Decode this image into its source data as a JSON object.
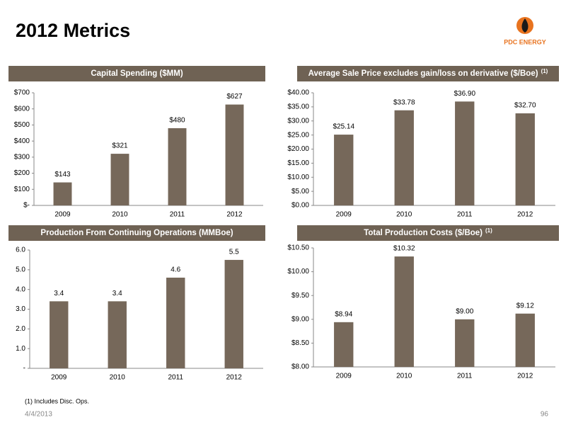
{
  "header": {
    "title": "2012 Metrics",
    "logo": "PDC ENERGY"
  },
  "chart_data": [
    {
      "type": "bar",
      "title": "Capital Spending ($MM)",
      "categories": [
        "2009",
        "2010",
        "2011",
        "2012"
      ],
      "values": [
        143,
        321,
        480,
        627
      ],
      "value_labels": [
        "$143",
        "$321",
        "$480",
        "$627"
      ],
      "color": "#76685a",
      "ylim": [
        0,
        700
      ],
      "yticks": [
        {
          "value": 0,
          "label": "$-"
        },
        {
          "value": 100,
          "label": "$100"
        },
        {
          "value": 200,
          "label": "$200"
        },
        {
          "value": 300,
          "label": "$300"
        },
        {
          "value": 400,
          "label": "$400"
        },
        {
          "value": 500,
          "label": "$500"
        },
        {
          "value": 600,
          "label": "$600"
        },
        {
          "value": 700,
          "label": "$700"
        }
      ]
    },
    {
      "type": "bar",
      "title": "Average Sale Price excludes gain/loss on derivative ($/Boe)",
      "title_note": "(1)",
      "categories": [
        "2009",
        "2010",
        "2011",
        "2012"
      ],
      "values": [
        25.14,
        33.78,
        36.9,
        32.7
      ],
      "value_labels": [
        "$25.14",
        "$33.78",
        "$36.90",
        "$32.70"
      ],
      "color": "#76685a",
      "ylim": [
        0,
        40
      ],
      "yticks": [
        {
          "value": 0,
          "label": "$0.00"
        },
        {
          "value": 5,
          "label": "$5.00"
        },
        {
          "value": 10,
          "label": "$10.00"
        },
        {
          "value": 15,
          "label": "$15.00"
        },
        {
          "value": 20,
          "label": "$20.00"
        },
        {
          "value": 25,
          "label": "$25.00"
        },
        {
          "value": 30,
          "label": "$30.00"
        },
        {
          "value": 35,
          "label": "$35.00"
        },
        {
          "value": 40,
          "label": "$40.00"
        }
      ]
    },
    {
      "type": "bar",
      "title": "Production From Continuing Operations (MMBoe)",
      "categories": [
        "2009",
        "2010",
        "2011",
        "2012"
      ],
      "values": [
        3.4,
        3.4,
        4.6,
        5.5
      ],
      "color": "#76685a",
      "ylim": [
        0,
        6
      ],
      "yticks": [
        {
          "value": 0,
          "label": "-"
        },
        {
          "value": 1,
          "label": "1.0"
        },
        {
          "value": 2,
          "label": "2.0"
        },
        {
          "value": 3,
          "label": "3.0"
        },
        {
          "value": 4,
          "label": "4.0"
        },
        {
          "value": 5,
          "label": "5.0"
        },
        {
          "value": 6,
          "label": "6.0"
        }
      ]
    },
    {
      "type": "bar",
      "title": "Total Production Costs ($/Boe)",
      "title_note": "(1)",
      "categories": [
        "2009",
        "2010",
        "2011",
        "2012"
      ],
      "values": [
        8.94,
        10.32,
        9.0,
        9.12
      ],
      "value_labels": [
        "$8.94",
        "$10.32",
        "$9.00",
        "$9.12"
      ],
      "color": "#76685a",
      "ylim": [
        8,
        10.5
      ],
      "yticks": [
        {
          "value": 8,
          "label": "$8.00"
        },
        {
          "value": 8.5,
          "label": "$8.50"
        },
        {
          "value": 9,
          "label": "$9.00"
        },
        {
          "value": 9.5,
          "label": "$9.50"
        },
        {
          "value": 10,
          "label": "$10.00"
        },
        {
          "value": 10.5,
          "label": "$10.50"
        }
      ]
    }
  ],
  "footer": {
    "note": "(1)  Includes Disc. Ops.",
    "date": "4/4/2013",
    "page": "96"
  }
}
